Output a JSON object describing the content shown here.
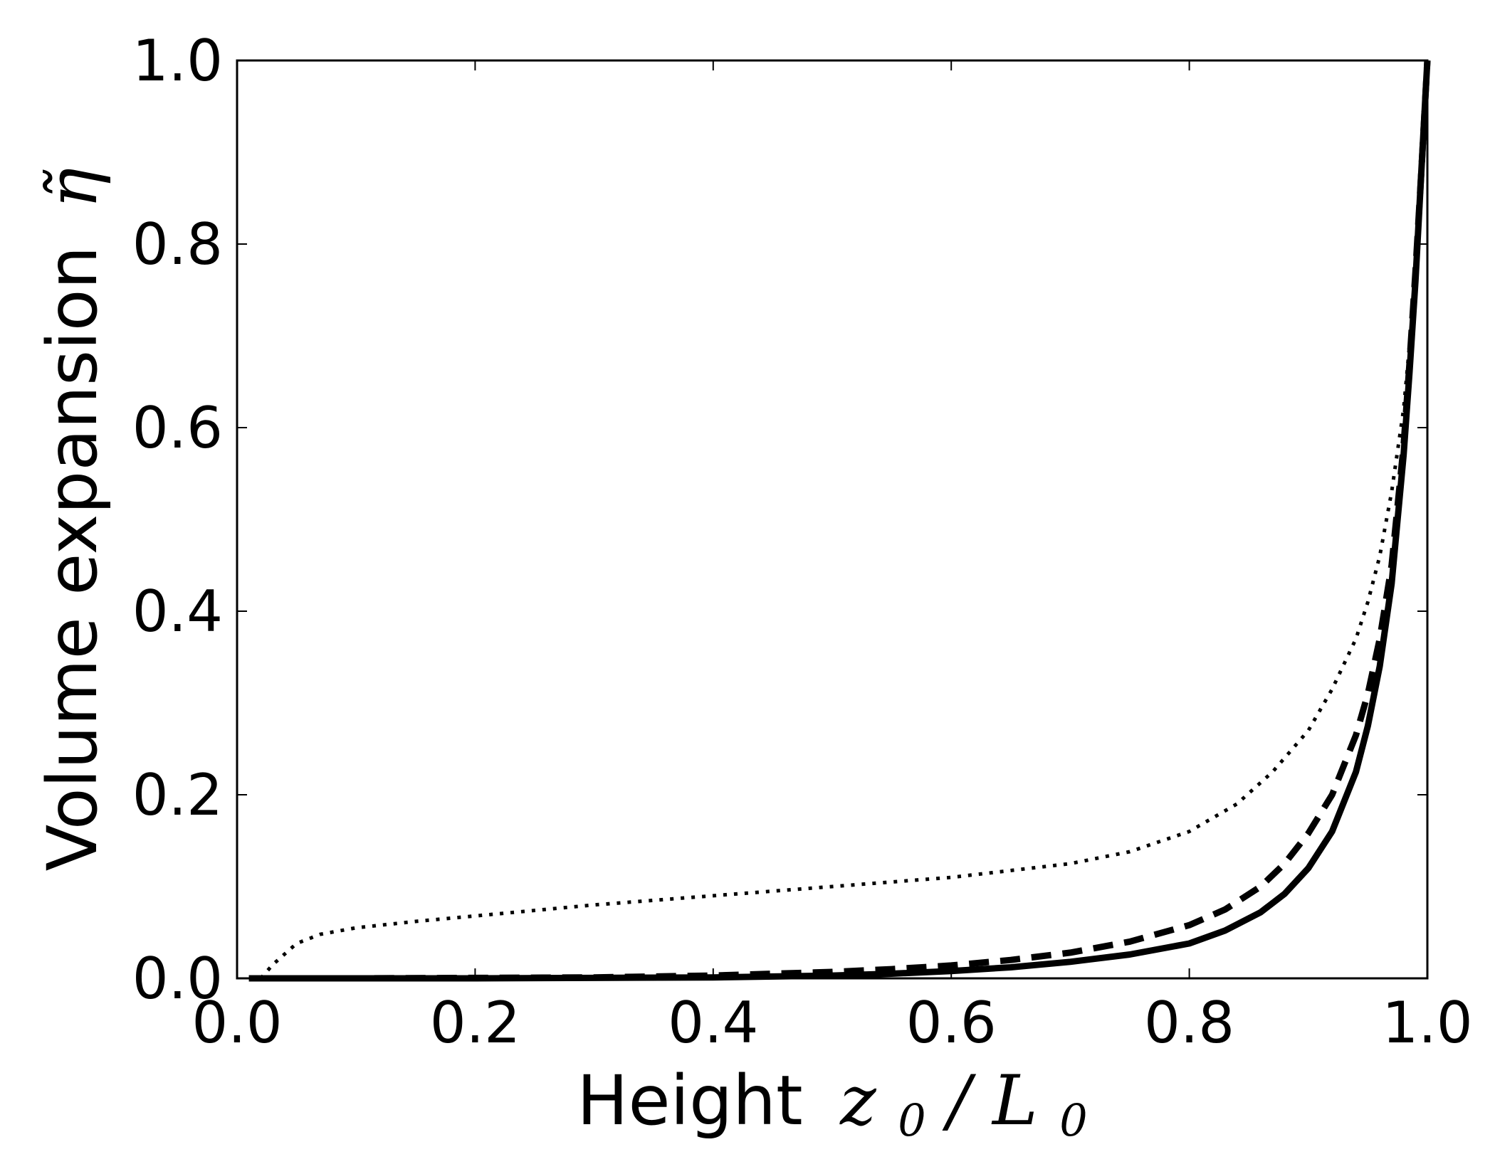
{
  "chart_data": {
    "type": "line",
    "title": "",
    "xlabel": {
      "text": "Height",
      "math": "z",
      "math_sub": "0",
      "slash": "/",
      "math2": "L",
      "math2_sub": "0"
    },
    "ylabel": {
      "text": "Volume expansion",
      "math": "η̃"
    },
    "xlim": [
      0.0,
      1.0
    ],
    "ylim": [
      0.0,
      1.0
    ],
    "xticks": [
      "0.0",
      "0.2",
      "0.4",
      "0.6",
      "0.8",
      "1.0"
    ],
    "yticks": [
      "0.0",
      "0.2",
      "0.4",
      "0.6",
      "0.8",
      "1.0"
    ],
    "grid": false,
    "legend": "none",
    "series": [
      {
        "style": "solid",
        "color": "#000000",
        "x": [
          0.01,
          0.1,
          0.2,
          0.3,
          0.4,
          0.5,
          0.55,
          0.6,
          0.65,
          0.7,
          0.75,
          0.8,
          0.83,
          0.86,
          0.88,
          0.9,
          0.92,
          0.94,
          0.95,
          0.96,
          0.97,
          0.98,
          0.985,
          0.99,
          0.995,
          1.0
        ],
        "y": [
          0.0,
          0.0,
          0.0,
          0.0005,
          0.001,
          0.003,
          0.005,
          0.008,
          0.012,
          0.018,
          0.026,
          0.038,
          0.052,
          0.072,
          0.092,
          0.12,
          0.16,
          0.225,
          0.275,
          0.34,
          0.43,
          0.57,
          0.66,
          0.76,
          0.88,
          1.0
        ]
      },
      {
        "style": "dashed",
        "color": "#000000",
        "x": [
          0.01,
          0.1,
          0.2,
          0.3,
          0.4,
          0.5,
          0.55,
          0.6,
          0.65,
          0.7,
          0.75,
          0.8,
          0.83,
          0.86,
          0.88,
          0.9,
          0.92,
          0.94,
          0.95,
          0.96,
          0.97,
          0.98,
          0.985,
          0.99,
          0.995,
          1.0
        ],
        "y": [
          0.0,
          0.0,
          0.0005,
          0.001,
          0.003,
          0.007,
          0.01,
          0.014,
          0.02,
          0.028,
          0.04,
          0.058,
          0.075,
          0.1,
          0.125,
          0.158,
          0.2,
          0.265,
          0.31,
          0.37,
          0.45,
          0.58,
          0.67,
          0.77,
          0.88,
          1.0
        ]
      },
      {
        "style": "dotted",
        "color": "#000000",
        "x": [
          0.02,
          0.03,
          0.05,
          0.07,
          0.1,
          0.15,
          0.2,
          0.3,
          0.4,
          0.5,
          0.6,
          0.7,
          0.75,
          0.8,
          0.84,
          0.87,
          0.9,
          0.92,
          0.94,
          0.95,
          0.96,
          0.97,
          0.98,
          0.99,
          0.995,
          1.0
        ],
        "y": [
          0.0,
          0.015,
          0.038,
          0.048,
          0.055,
          0.062,
          0.068,
          0.08,
          0.09,
          0.1,
          0.11,
          0.125,
          0.138,
          0.16,
          0.19,
          0.225,
          0.27,
          0.315,
          0.37,
          0.41,
          0.46,
          0.53,
          0.62,
          0.76,
          0.87,
          1.0
        ]
      }
    ]
  }
}
